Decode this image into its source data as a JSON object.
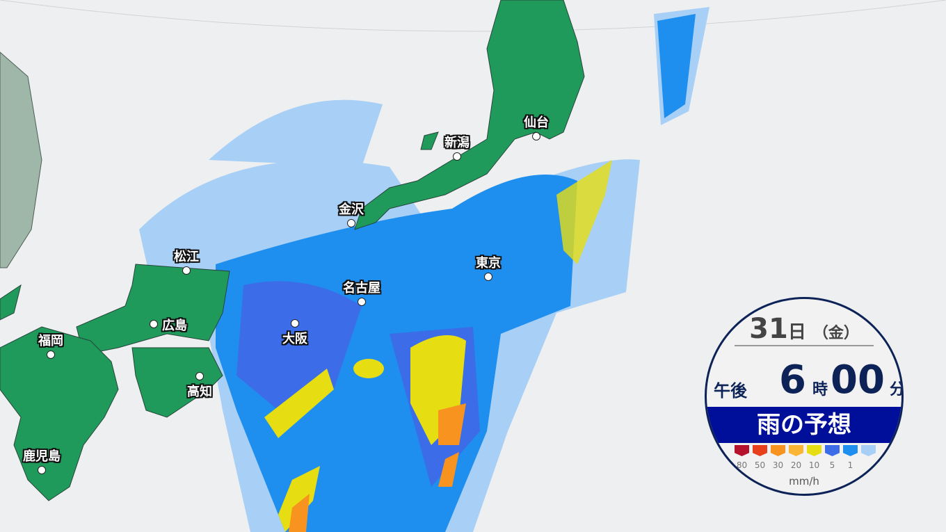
{
  "map": {
    "cities": [
      {
        "name": "仙台"
      },
      {
        "name": "新潟"
      },
      {
        "name": "金沢"
      },
      {
        "name": "松江"
      },
      {
        "name": "東京"
      },
      {
        "name": "名古屋"
      },
      {
        "name": "広島"
      },
      {
        "name": "大阪"
      },
      {
        "name": "福岡"
      },
      {
        "name": "高知"
      },
      {
        "name": "鹿児島"
      }
    ],
    "land_color": "#1f9a5a",
    "sea_color": "#eeeff0"
  },
  "panel": {
    "day": "31",
    "day_unit": "日",
    "weekday": "（金）",
    "ampm": "午後",
    "hour": "6",
    "hour_unit": "時",
    "minute": "00",
    "minute_unit": "分",
    "title": "雨の予想",
    "legend": [
      {
        "label": "80",
        "color": "#b4122d"
      },
      {
        "label": "50",
        "color": "#e8401c"
      },
      {
        "label": "30",
        "color": "#f7931e"
      },
      {
        "label": "20",
        "color": "#fbb534"
      },
      {
        "label": "10",
        "color": "#e6dd12"
      },
      {
        "label": "5",
        "color": "#3c6ce8"
      },
      {
        "label": "1",
        "color": "#1f8fef"
      },
      {
        "label": "",
        "color": "#a8cff5"
      }
    ],
    "unit": "mm/h"
  }
}
